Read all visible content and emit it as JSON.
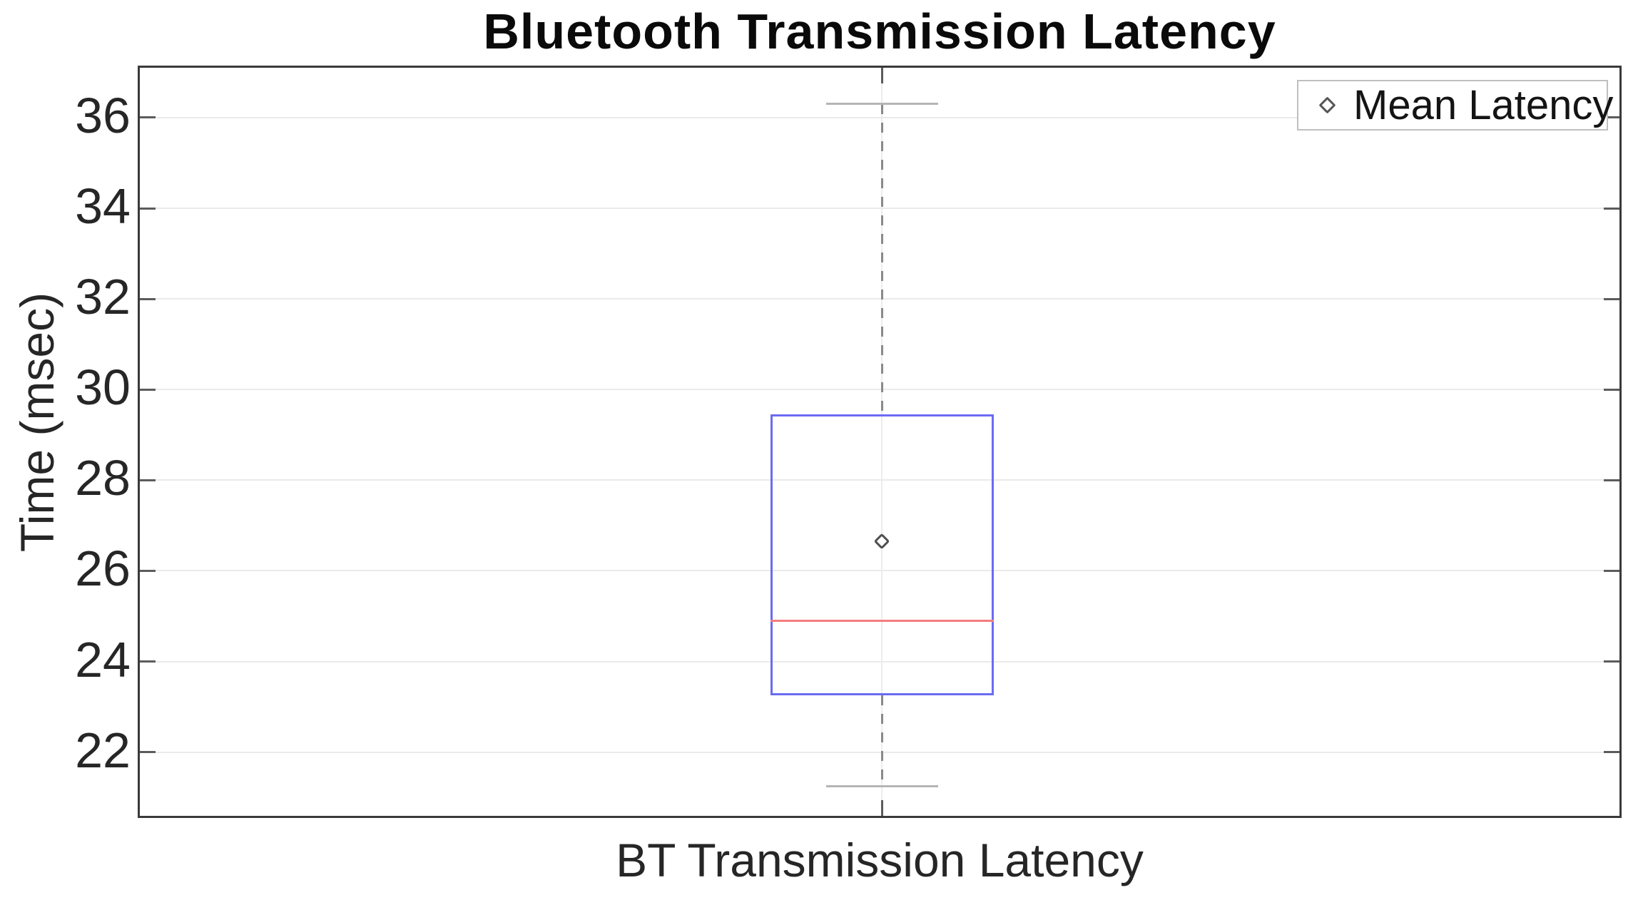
{
  "title": "Bluetooth Transmission Latency",
  "axes": {
    "y_label": "Time (msec)",
    "x_label": "BT Transmission Latency"
  },
  "legend": {
    "items": [
      {
        "label": "Mean Latency",
        "marker": "diamond-outline-icon"
      }
    ],
    "position": "top-right"
  },
  "colors": {
    "box": "#6b6bf2",
    "median": "#f47d7d",
    "whisker": "#8a8a8a",
    "cap": "#b5b5b5",
    "mean_marker": "#4f4f4f",
    "grid": "#eaeaea",
    "axis_border": "#3a3a3a",
    "tick": "#5c5c5c",
    "text": "#262626"
  },
  "chart_data": {
    "type": "boxplot",
    "title": "Bluetooth Transmission Latency",
    "xlabel": "BT Transmission Latency",
    "ylabel": "Time (msec)",
    "categories": [
      "BT Transmission Latency"
    ],
    "series": [
      {
        "name": "BT Transmission Latency",
        "whisker_low": 21.25,
        "q1": 23.25,
        "median": 24.9,
        "q3": 29.45,
        "whisker_high": 36.3,
        "mean": 26.65
      }
    ],
    "yticks": [
      22,
      24,
      26,
      28,
      30,
      32,
      34,
      36
    ],
    "ylim": [
      20.5,
      37.1
    ],
    "grid": true,
    "vertical_gridline_at_category": true,
    "legend": [
      "Mean Latency"
    ],
    "legend_position": "top-right"
  }
}
